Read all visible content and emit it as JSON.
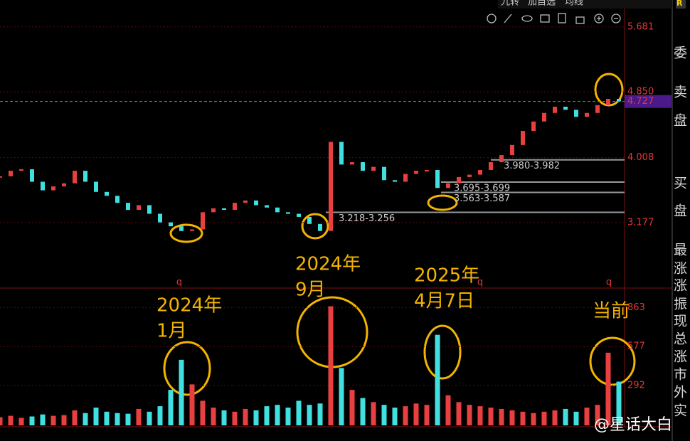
{
  "toolbar": {
    "tabs": [
      "九转",
      "加自选",
      "均线"
    ]
  },
  "corner": "R",
  "side_panel": [
    "委",
    "卖",
    "盘",
    "买",
    "盘",
    "最",
    "涨",
    "涨",
    "振",
    "现",
    "总",
    "涨",
    "市",
    "外",
    "实"
  ],
  "chart_data": [
    {
      "type": "line",
      "ylim": [
        2.385,
        6.025
      ],
      "yticks": [
        3.177,
        4.008,
        {
          "value": 4.85,
          "label": "4.850"
        },
        5.681
      ],
      "last_price": 4.727,
      "levels": [
        {
          "label": "3.980-3.982",
          "value": 3.98
        },
        {
          "label": "3.695-3.699",
          "value": 3.695
        },
        {
          "label": "3.563-3.587",
          "value": 3.563
        },
        {
          "label": "3.218-3.256",
          "value": 3.218
        }
      ],
      "series": [
        {
          "color": "#e84040",
          "values": [
            3.77,
            3.84,
            3.86,
            3.7,
            3.59,
            3.64,
            3.68,
            3.84,
            3.7,
            3.57,
            3.52,
            3.43,
            3.34,
            3.4,
            3.29,
            3.18,
            3.13,
            3.07,
            3.09,
            3.31,
            3.36,
            3.34,
            3.43,
            3.46,
            3.4,
            3.37,
            3.31,
            3.29,
            3.25,
            3.16,
            3.07,
            4.21,
            3.92,
            3.95,
            3.84,
            3.89,
            3.72,
            3.7,
            3.8,
            3.84,
            3.85,
            3.62,
            3.68,
            3.76,
            3.79,
            3.85,
            3.95,
            4.04,
            4.17,
            4.35,
            4.47,
            4.58,
            4.66,
            4.62,
            4.53,
            4.58,
            4.68,
            4.76,
            4.73
          ]
        }
      ],
      "markers": [
        "q",
        "q",
        "q"
      ]
    },
    {
      "type": "bar",
      "ylim": [
        0,
        1000
      ],
      "yticks": [
        292,
        577,
        863
      ],
      "series": [
        {
          "color": "#e84040",
          "values": [
            60,
            70,
            55,
            65,
            80,
            70,
            75,
            110,
            90,
            130,
            100,
            90,
            85,
            120,
            100,
            140,
            260,
            480,
            300,
            180,
            130,
            110,
            100,
            120,
            110,
            140,
            150,
            130,
            180,
            150,
            160,
            872,
            420,
            260,
            200,
            170,
            150,
            130,
            140,
            160,
            150,
            663,
            220,
            170,
            150,
            140,
            130,
            120,
            110,
            100,
            90,
            100,
            110,
            120,
            100,
            130,
            150,
            532,
            320
          ]
        }
      ]
    }
  ],
  "annotations": [
    [
      "2024年",
      "1月"
    ],
    [
      "2024年",
      "9月"
    ],
    [
      "2025年",
      "4月7日"
    ],
    [
      "当前"
    ]
  ],
  "watermark": "@星话大白"
}
